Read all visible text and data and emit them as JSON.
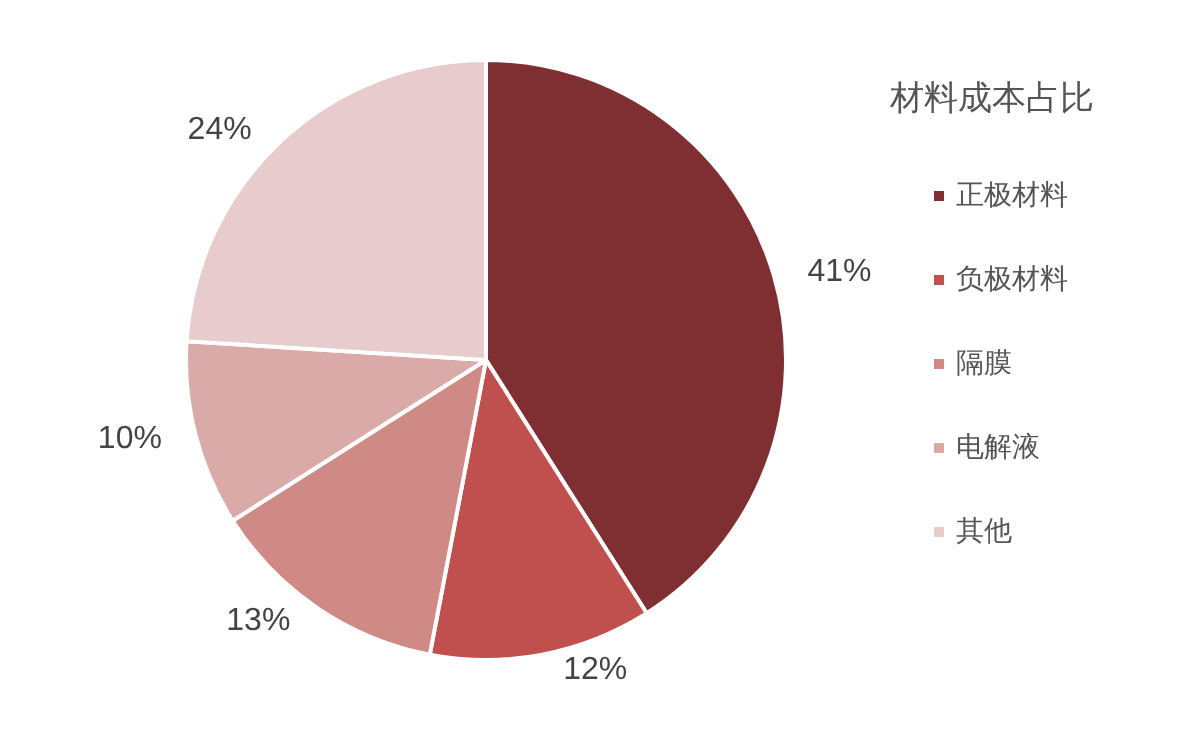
{
  "chart_data": {
    "type": "pie",
    "legend_title": "材料成本占比",
    "categories": [
      "正极材料",
      "负极材料",
      "隔膜",
      "电解液",
      "其他"
    ],
    "values": [
      41,
      12,
      13,
      10,
      24
    ],
    "colors": [
      "#7f2f32",
      "#c0504d",
      "#d08a86",
      "#d9aaa8",
      "#e8cbcc"
    ],
    "value_labels": [
      "41%",
      "12%",
      "13%",
      "10%",
      "24%"
    ],
    "legend": "right"
  }
}
